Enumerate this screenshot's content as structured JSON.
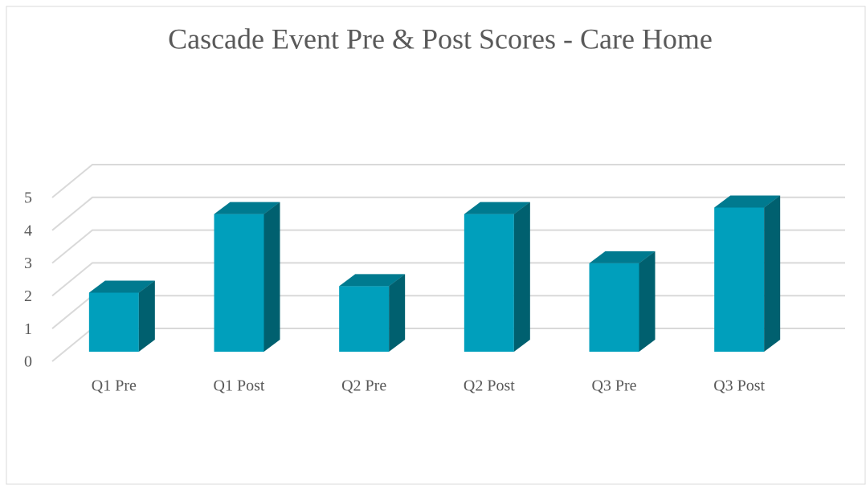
{
  "chart_data": {
    "type": "bar3d",
    "title": "Cascade Event Pre & Post Scores - Care Home",
    "categories": [
      "Q1 Pre",
      "Q1 Post",
      "Q2 Pre",
      "Q2 Post",
      "Q3 Pre",
      "Q3 Post"
    ],
    "values": [
      1.8,
      4.2,
      2.0,
      4.2,
      2.7,
      4.4
    ],
    "color": "#009fbc",
    "ylim": [
      0,
      5
    ],
    "yticks": [
      0,
      1,
      2,
      3,
      4,
      5
    ],
    "grid": true
  }
}
